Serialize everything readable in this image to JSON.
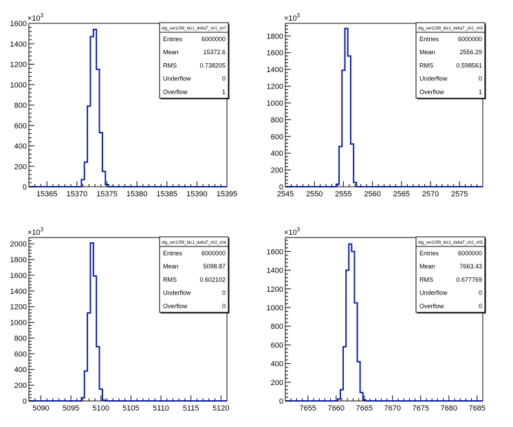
{
  "chart_data": [
    {
      "type": "bar",
      "title": "",
      "xlabel": "",
      "ylabel": "",
      "exponent_label": "×10",
      "exponent_power": "3",
      "xlim": [
        15362,
        15395
      ],
      "ylim": [
        0,
        1600
      ],
      "xticks": [
        "15365",
        "15370",
        "15375",
        "15380",
        "15385",
        "15390",
        "15395"
      ],
      "yticks": [
        "0",
        "200",
        "400",
        "600",
        "800",
        "1000",
        "1200",
        "1400",
        "1600"
      ],
      "bin_width": 0.5,
      "bins": [
        {
          "x": 15370.5,
          "y": 0
        },
        {
          "x": 15371.0,
          "y": 70
        },
        {
          "x": 15371.5,
          "y": 240
        },
        {
          "x": 15372.0,
          "y": 790
        },
        {
          "x": 15372.5,
          "y": 1470
        },
        {
          "x": 15373.0,
          "y": 1540
        },
        {
          "x": 15373.5,
          "y": 1150
        },
        {
          "x": 15374.0,
          "y": 530
        },
        {
          "x": 15374.5,
          "y": 150
        },
        {
          "x": 15375.0,
          "y": 20
        }
      ],
      "stats": {
        "name": "dig_ser1299_tdc1_deltaT_ch1_ch7",
        "rows": [
          {
            "label": "Entries",
            "value": "6000000"
          },
          {
            "label": "Mean",
            "value": "15372.6"
          },
          {
            "label": "RMS",
            "value": "0.738205"
          },
          {
            "label": "Underflow",
            "value": "0"
          },
          {
            "label": "Overflow",
            "value": "1"
          }
        ]
      }
    },
    {
      "type": "bar",
      "title": "",
      "xlabel": "",
      "ylabel": "",
      "exponent_label": "×10",
      "exponent_power": "3",
      "xlim": [
        2545,
        2579
      ],
      "ylim": [
        0,
        1950
      ],
      "xticks": [
        "2545",
        "2550",
        "2555",
        "2560",
        "2565",
        "2570",
        "2575"
      ],
      "yticks": [
        "0",
        "200",
        "400",
        "600",
        "800",
        "1000",
        "1200",
        "1400",
        "1600",
        "1800"
      ],
      "bin_width": 0.5,
      "bins": [
        {
          "x": 2554.0,
          "y": 30
        },
        {
          "x": 2554.5,
          "y": 480
        },
        {
          "x": 2555.0,
          "y": 1390
        },
        {
          "x": 2555.5,
          "y": 1890
        },
        {
          "x": 2556.0,
          "y": 1560
        },
        {
          "x": 2556.5,
          "y": 510
        },
        {
          "x": 2557.0,
          "y": 50
        }
      ],
      "stats": {
        "name": "dig_ser1299_tdc1_deltaT_ch2_ch3",
        "rows": [
          {
            "label": "Entries",
            "value": "6000000"
          },
          {
            "label": "Mean",
            "value": "2556.29"
          },
          {
            "label": "RMS",
            "value": "0.598561"
          },
          {
            "label": "Underflow",
            "value": "0"
          },
          {
            "label": "Overflow",
            "value": "1"
          }
        ]
      }
    },
    {
      "type": "bar",
      "title": "",
      "xlabel": "",
      "ylabel": "",
      "exponent_label": "×10",
      "exponent_power": "3",
      "xlim": [
        5088,
        5121
      ],
      "ylim": [
        0,
        2080
      ],
      "xticks": [
        "5090",
        "5095",
        "5100",
        "5105",
        "5110",
        "5115",
        "5120"
      ],
      "yticks": [
        "0",
        "200",
        "400",
        "600",
        "800",
        "1000",
        "1200",
        "1400",
        "1600",
        "1800",
        "2000"
      ],
      "bin_width": 0.5,
      "bins": [
        {
          "x": 5097.0,
          "y": 40
        },
        {
          "x": 5097.5,
          "y": 380
        },
        {
          "x": 5098.0,
          "y": 1120
        },
        {
          "x": 5098.5,
          "y": 2010
        },
        {
          "x": 5099.0,
          "y": 1590
        },
        {
          "x": 5099.5,
          "y": 690
        },
        {
          "x": 5100.0,
          "y": 150
        },
        {
          "x": 5100.5,
          "y": 10
        }
      ],
      "stats": {
        "name": "dig_ser1299_tdc1_deltaT_ch2_ch4",
        "rows": [
          {
            "label": "Entries",
            "value": "6000000"
          },
          {
            "label": "Mean",
            "value": "5098.87"
          },
          {
            "label": "RMS",
            "value": "0.602102"
          },
          {
            "label": "Underflow",
            "value": "0"
          },
          {
            "label": "Overflow",
            "value": "0"
          }
        ]
      }
    },
    {
      "type": "bar",
      "title": "",
      "xlabel": "",
      "ylabel": "",
      "exponent_label": "×10",
      "exponent_power": "3",
      "xlim": [
        7651,
        7686
      ],
      "ylim": [
        0,
        1750
      ],
      "xticks": [
        "7655",
        "7660",
        "7665",
        "7670",
        "7675",
        "7680",
        "7685"
      ],
      "yticks": [
        "0",
        "200",
        "400",
        "600",
        "800",
        "1000",
        "1200",
        "1400",
        "1600"
      ],
      "bin_width": 0.5,
      "bins": [
        {
          "x": 7660.5,
          "y": 20
        },
        {
          "x": 7661.0,
          "y": 120
        },
        {
          "x": 7661.5,
          "y": 580
        },
        {
          "x": 7662.0,
          "y": 1400
        },
        {
          "x": 7662.5,
          "y": 1680
        },
        {
          "x": 7663.0,
          "y": 1600
        },
        {
          "x": 7663.5,
          "y": 1050
        },
        {
          "x": 7664.0,
          "y": 420
        },
        {
          "x": 7664.5,
          "y": 90
        },
        {
          "x": 7665.0,
          "y": 10
        }
      ],
      "stats": {
        "name": "dig_ser1299_tdc1_deltaT_ch2_ch5",
        "rows": [
          {
            "label": "Entries",
            "value": "6000000"
          },
          {
            "label": "Mean",
            "value": "7663.43"
          },
          {
            "label": "RMS",
            "value": "0.677769"
          },
          {
            "label": "Underflow",
            "value": "0"
          },
          {
            "label": "Overflow",
            "value": "0"
          }
        ]
      }
    }
  ],
  "colors": {
    "histogram_line": "#0a1fb5",
    "axis": "#000000",
    "background": "#ffffff"
  }
}
